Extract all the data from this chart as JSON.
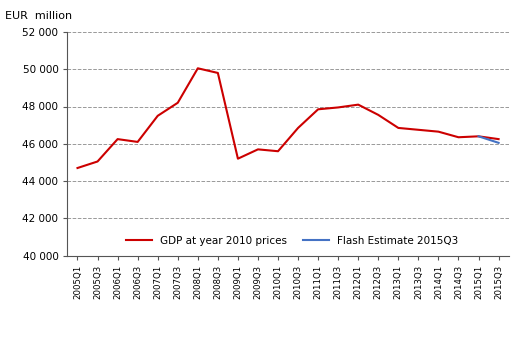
{
  "title": "EUR  million",
  "ylim": [
    40000,
    52000
  ],
  "yticks": [
    40000,
    42000,
    44000,
    46000,
    48000,
    50000,
    52000
  ],
  "background_color": "#ffffff",
  "grid_color": "#999999",
  "x_labels": [
    "2005Q1",
    "2005Q3",
    "2006Q1",
    "2006Q3",
    "2007Q1",
    "2007Q3",
    "2008Q1",
    "2008Q3",
    "2009Q1",
    "2009Q3",
    "2010Q1",
    "2010Q3",
    "2011Q1",
    "2011Q3",
    "2012Q1",
    "2012Q3",
    "2013Q1",
    "2013Q3",
    "2014Q1",
    "2014Q3",
    "2015Q1",
    "2015Q3"
  ],
  "gdp_values": [
    44700,
    45050,
    46250,
    46100,
    47500,
    48200,
    50050,
    49800,
    45200,
    45700,
    45600,
    46850,
    47850,
    47950,
    48100,
    47550,
    46850,
    46750,
    46650,
    46350,
    46400,
    46250
  ],
  "flash_values": [
    null,
    null,
    null,
    null,
    null,
    null,
    null,
    null,
    null,
    null,
    null,
    null,
    null,
    null,
    null,
    null,
    null,
    null,
    null,
    null,
    46400,
    46050
  ],
  "gdp_color": "#cc0000",
  "flash_color": "#4472c4",
  "legend_labels": [
    "Flash Estimate 2015Q3",
    "GDP at year 2010 prices"
  ],
  "legend_flash_color": "#4472c4",
  "legend_gdp_color": "#cc0000"
}
